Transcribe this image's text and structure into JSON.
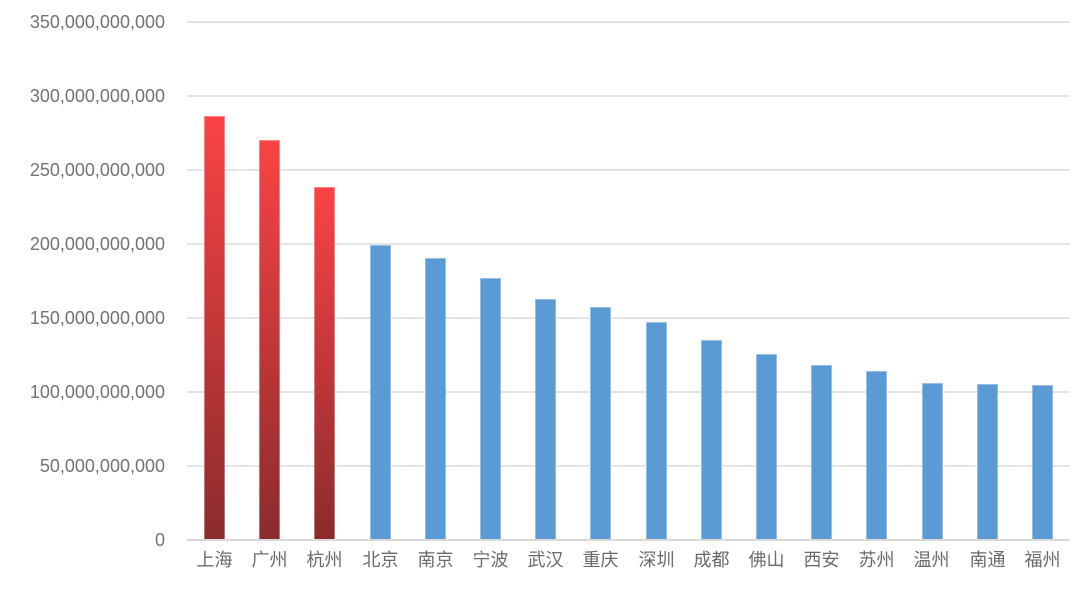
{
  "chart_data": {
    "type": "bar",
    "title": "",
    "xlabel": "",
    "ylabel": "",
    "categories": [
      "上海",
      "广州",
      "杭州",
      "北京",
      "南京",
      "宁波",
      "武汉",
      "重庆",
      "深圳",
      "成都",
      "佛山",
      "西安",
      "苏州",
      "温州",
      "南通",
      "福州"
    ],
    "values": [
      286500000000,
      270000000000,
      238500000000,
      199000000000,
      190500000000,
      177000000000,
      162500000000,
      157500000000,
      147000000000,
      135000000000,
      126000000000,
      118000000000,
      114500000000,
      106000000000,
      105500000000,
      105000000000
    ],
    "highlighted_categories": [
      "上海",
      "广州",
      "杭州"
    ],
    "ylim": [
      0,
      350000000000
    ],
    "y_tick_step": 50000000000,
    "y_tick_labels": [
      "0",
      "50,000,000,000",
      "100,000,000,000",
      "150,000,000,000",
      "200,000,000,000",
      "250,000,000,000",
      "300,000,000,000",
      "350,000,000,000"
    ],
    "grid": "horizontal",
    "legend": "none",
    "colors": {
      "highlight_gradient_top": "#fa4345",
      "highlight_gradient_bottom": "#8b2b2c",
      "default_bar": "#5b9bd5",
      "gridline": "#e5e5e5",
      "axis_line": "#d9d9d9",
      "y_tick_text": "#737373",
      "x_tick_text": "#6b6b6b"
    }
  }
}
